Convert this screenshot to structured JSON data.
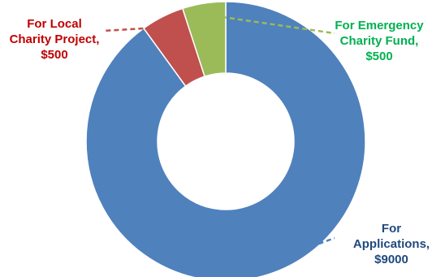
{
  "chart_data": {
    "type": "pie",
    "variant": "donut",
    "title": "",
    "total": 10000,
    "start": "top",
    "direction": "clockwise",
    "slices": [
      {
        "name": "For Applications",
        "value": 9000,
        "color": "#4F81BD",
        "label_lines": [
          "For",
          "Applications,",
          "$9000"
        ]
      },
      {
        "name": "For Local Charity Project",
        "value": 500,
        "color": "#C0504D",
        "label_lines": [
          "For Local",
          "Charity Project,",
          "$500"
        ]
      },
      {
        "name": "For Emergency Charity Fund",
        "value": 500,
        "color": "#9BBB59",
        "label_lines": [
          "For Emergency",
          "Charity Fund,",
          "$500"
        ]
      }
    ],
    "label_colors": {
      "For Applications": "#1F497D",
      "For Local Charity Project": "#C00000",
      "For Emergency Charity Fund": "#00B050"
    },
    "leader_lines": "dashed"
  }
}
